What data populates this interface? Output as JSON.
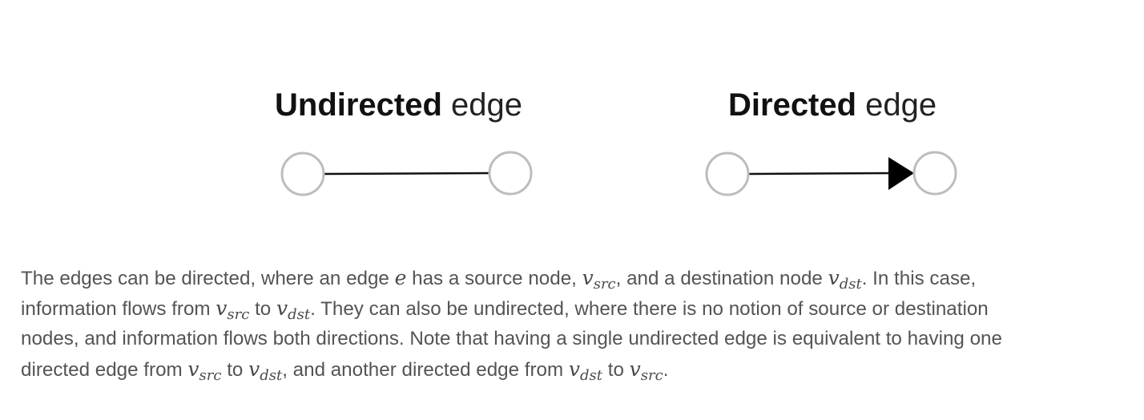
{
  "diagram": {
    "undirected": {
      "title_bold": "Undirected",
      "title_rest": " edge"
    },
    "directed": {
      "title_bold": "Directed",
      "title_rest": " edge"
    }
  },
  "caption": {
    "line1": {
      "t1": "The edges can be directed, where an edge ",
      "e": "e",
      "t2": " has a source node, ",
      "v1": "v",
      "s1": "src",
      "t3": ", and a destination node ",
      "v2": "v",
      "s2": "dst",
      "t4": ". In this case,"
    },
    "line2": {
      "t1": "information flows from ",
      "v1": "v",
      "s1": "src",
      "t2": " to ",
      "v2": "v",
      "s2": "dst",
      "t3": ". They can also be undirected, where there is no notion of source or destination"
    },
    "line3": {
      "t1": "nodes, and information flows both directions. Note that having a single undirected edge is equivalent to having one"
    },
    "line4": {
      "t1": "directed edge from ",
      "v1": "v",
      "s1": "src",
      "t2": " to ",
      "v2": "v",
      "s2": "dst",
      "t3": ", and another directed edge from ",
      "v3": "v",
      "s3": "dst",
      "t4": " to ",
      "v4": "v",
      "s4": "src",
      "t5": "."
    }
  },
  "colors": {
    "node_stroke": "#bdbdbd",
    "edge_stroke": "#111111",
    "caption_text": "#545454"
  }
}
